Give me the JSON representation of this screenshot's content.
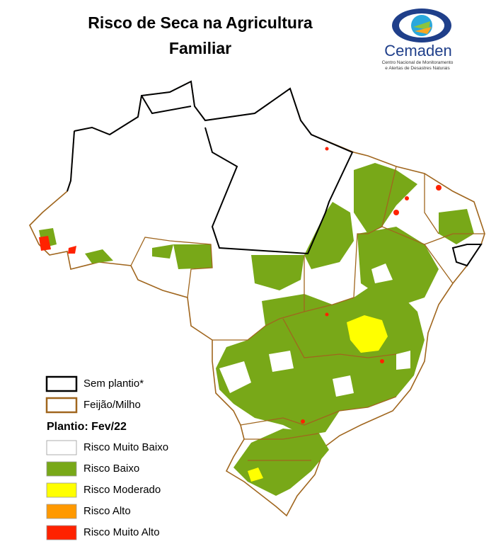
{
  "header": {
    "title_line1": "Risco de Seca na Agricultura",
    "title_line2": "Familiar"
  },
  "logo": {
    "name": "Cemaden",
    "subtitle_line1": "Centro Nacional de Monitoramento",
    "subtitle_line2": "e Alertas de Desastres Naturais"
  },
  "legend": {
    "boundaries": [
      {
        "label": "Sem plantio*",
        "color": "#000000"
      },
      {
        "label": "Feijão/Milho",
        "color": "#a0661e"
      }
    ],
    "heading": "Plantio: Fev/22",
    "classes": [
      {
        "label": "Risco Muito Baixo",
        "color": "#ffffff"
      },
      {
        "label": "Risco Baixo",
        "color": "#78a818"
      },
      {
        "label": "Risco Moderado",
        "color": "#ffff00"
      },
      {
        "label": "Risco Alto",
        "color": "#ff9900"
      },
      {
        "label": "Risco Muito Alto",
        "color": "#ff2200"
      }
    ]
  }
}
